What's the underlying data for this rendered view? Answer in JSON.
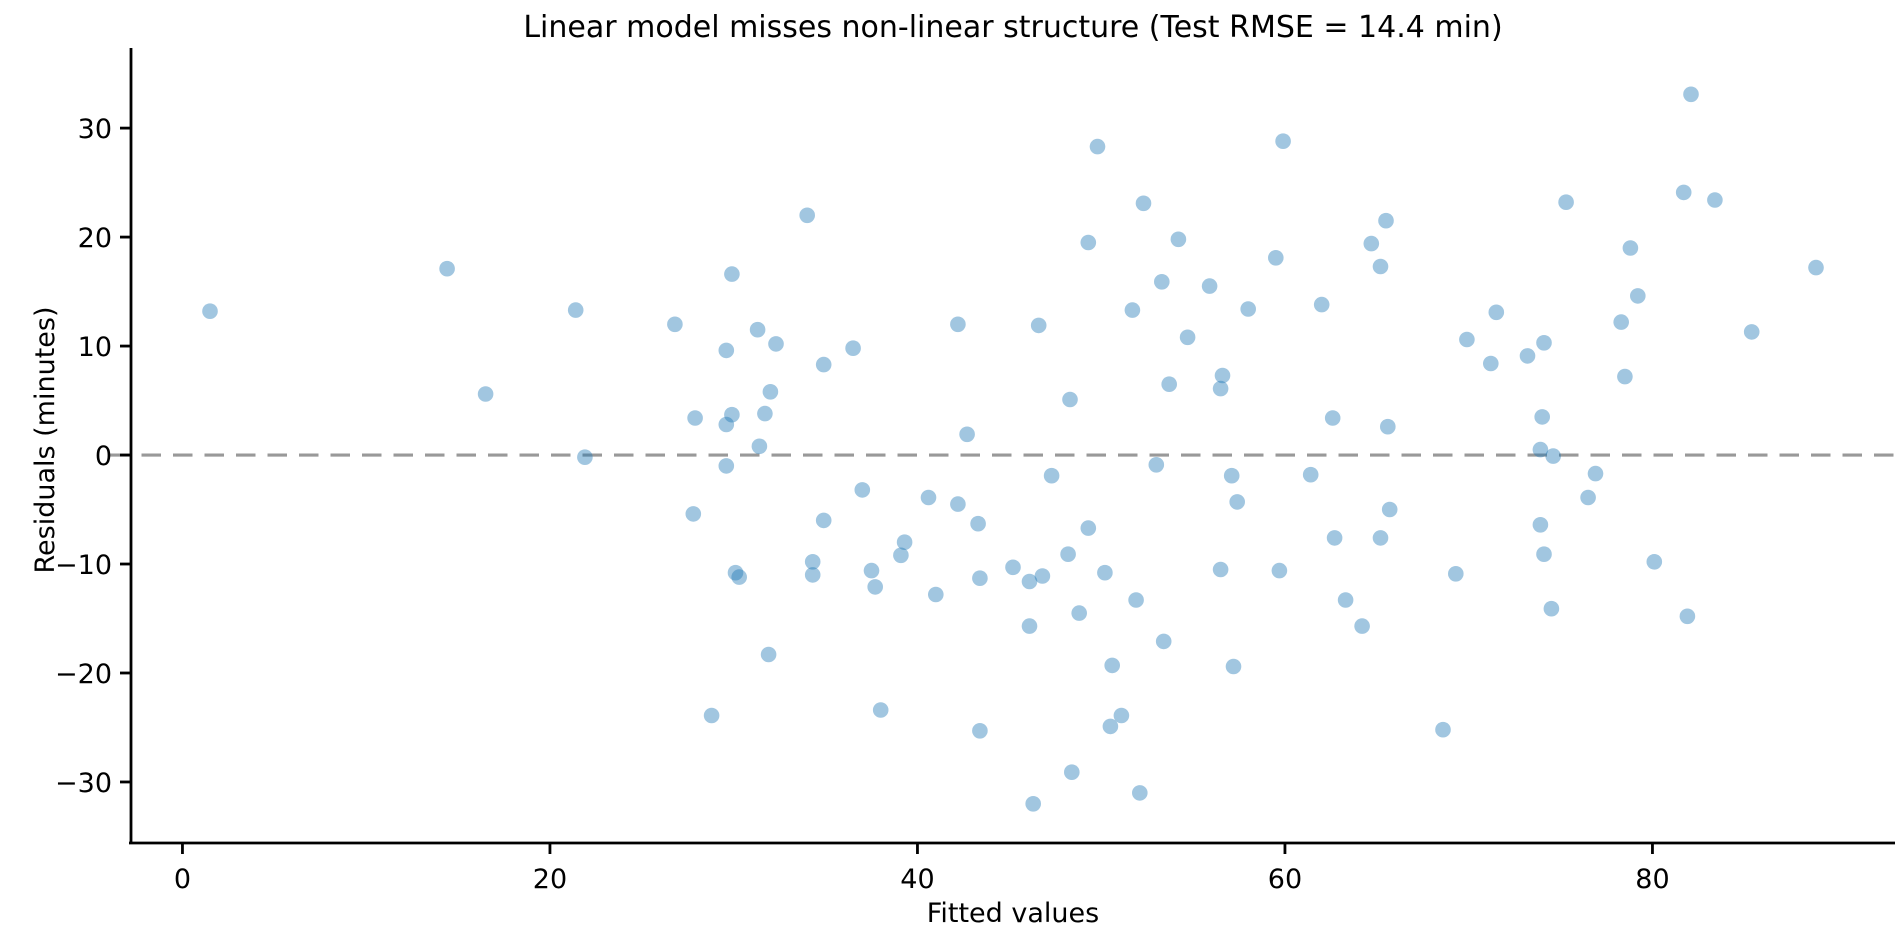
{
  "chart_data": {
    "type": "scatter",
    "title": "Linear model misses non-linear structure (Test RMSE = 14.4 min)",
    "xlabel": "Fitted values",
    "ylabel": "Residuals (minutes)",
    "xlim": [
      -2.8,
      93.2
    ],
    "ylim": [
      -35.6,
      36.8
    ],
    "x_ticks": [
      0,
      20,
      40,
      60,
      80
    ],
    "y_ticks": [
      -30,
      -20,
      -10,
      0,
      10,
      20,
      30
    ],
    "grid": false,
    "legend_position": "none",
    "reference_line": {
      "y": 0,
      "style": "dashed",
      "color": "#999999"
    },
    "marker": {
      "color": "#1f77b4",
      "opacity": 0.42,
      "radius": 7.8
    },
    "axis_color": "#000000",
    "points": [
      [
        1.5,
        13.2
      ],
      [
        14.4,
        17.1
      ],
      [
        16.5,
        5.6
      ],
      [
        21.4,
        13.3
      ],
      [
        21.9,
        -0.2
      ],
      [
        26.8,
        12.0
      ],
      [
        27.8,
        -5.4
      ],
      [
        27.9,
        3.4
      ],
      [
        28.8,
        -23.9
      ],
      [
        29.9,
        16.6
      ],
      [
        31.3,
        11.5
      ],
      [
        32.3,
        10.2
      ],
      [
        29.6,
        9.6
      ],
      [
        32.0,
        5.8
      ],
      [
        31.7,
        3.8
      ],
      [
        29.9,
        3.7
      ],
      [
        29.6,
        2.8
      ],
      [
        31.4,
        0.8
      ],
      [
        29.6,
        -1.0
      ],
      [
        30.1,
        -10.8
      ],
      [
        30.3,
        -11.2
      ],
      [
        31.9,
        -18.3
      ],
      [
        34.0,
        22.0
      ],
      [
        34.9,
        8.3
      ],
      [
        36.5,
        9.8
      ],
      [
        34.9,
        -6.0
      ],
      [
        34.3,
        -9.8
      ],
      [
        34.3,
        -11.0
      ],
      [
        37.0,
        -3.2
      ],
      [
        37.5,
        -10.6
      ],
      [
        37.7,
        -12.1
      ],
      [
        38.0,
        -23.4
      ],
      [
        39.3,
        -8.0
      ],
      [
        39.1,
        -9.2
      ],
      [
        40.6,
        -3.9
      ],
      [
        41.0,
        -12.8
      ],
      [
        42.2,
        12.0
      ],
      [
        42.2,
        -4.5
      ],
      [
        42.7,
        1.9
      ],
      [
        43.3,
        -6.3
      ],
      [
        43.4,
        -11.3
      ],
      [
        43.4,
        -25.3
      ],
      [
        45.2,
        -10.3
      ],
      [
        46.1,
        -11.6
      ],
      [
        46.8,
        -11.1
      ],
      [
        46.1,
        -15.7
      ],
      [
        46.6,
        11.9
      ],
      [
        47.3,
        -1.9
      ],
      [
        46.3,
        -32.0
      ],
      [
        48.2,
        -9.1
      ],
      [
        48.3,
        5.1
      ],
      [
        48.4,
        -29.1
      ],
      [
        48.8,
        -14.5
      ],
      [
        49.8,
        28.3
      ],
      [
        49.3,
        19.5
      ],
      [
        49.3,
        -6.7
      ],
      [
        50.2,
        -10.8
      ],
      [
        50.5,
        -24.9
      ],
      [
        51.1,
        -23.9
      ],
      [
        50.6,
        -19.3
      ],
      [
        51.9,
        -13.3
      ],
      [
        52.1,
        -31.0
      ],
      [
        51.7,
        13.3
      ],
      [
        52.3,
        23.1
      ],
      [
        53.0,
        -0.9
      ],
      [
        53.3,
        15.9
      ],
      [
        53.4,
        -17.1
      ],
      [
        53.7,
        6.5
      ],
      [
        54.2,
        19.8
      ],
      [
        54.7,
        10.8
      ],
      [
        55.9,
        15.5
      ],
      [
        56.6,
        7.3
      ],
      [
        56.5,
        6.1
      ],
      [
        56.5,
        -10.5
      ],
      [
        57.1,
        -1.9
      ],
      [
        57.2,
        -19.4
      ],
      [
        58.0,
        13.4
      ],
      [
        57.4,
        -4.3
      ],
      [
        59.9,
        28.8
      ],
      [
        59.5,
        18.1
      ],
      [
        59.7,
        -10.6
      ],
      [
        61.4,
        -1.8
      ],
      [
        62.0,
        13.8
      ],
      [
        62.6,
        3.4
      ],
      [
        62.7,
        -7.6
      ],
      [
        63.3,
        -13.3
      ],
      [
        64.2,
        -15.7
      ],
      [
        64.7,
        19.4
      ],
      [
        65.2,
        17.3
      ],
      [
        65.5,
        21.5
      ],
      [
        65.6,
        2.6
      ],
      [
        65.2,
        -7.6
      ],
      [
        65.7,
        -5.0
      ],
      [
        68.6,
        -25.2
      ],
      [
        69.3,
        -10.9
      ],
      [
        69.9,
        10.6
      ],
      [
        71.5,
        13.1
      ],
      [
        71.2,
        8.4
      ],
      [
        73.2,
        9.1
      ],
      [
        74.1,
        10.3
      ],
      [
        73.9,
        0.5
      ],
      [
        74.6,
        -0.1
      ],
      [
        73.9,
        -6.4
      ],
      [
        74.1,
        -9.1
      ],
      [
        74.5,
        -14.1
      ],
      [
        74.0,
        3.5
      ],
      [
        75.3,
        23.2
      ],
      [
        76.5,
        -3.9
      ],
      [
        76.9,
        -1.7
      ],
      [
        78.8,
        19.0
      ],
      [
        78.3,
        12.2
      ],
      [
        79.2,
        14.6
      ],
      [
        78.5,
        7.2
      ],
      [
        80.1,
        -9.8
      ],
      [
        81.7,
        24.1
      ],
      [
        82.1,
        33.1
      ],
      [
        83.4,
        23.4
      ],
      [
        81.9,
        -14.8
      ],
      [
        85.4,
        11.3
      ],
      [
        88.9,
        17.2
      ]
    ]
  }
}
